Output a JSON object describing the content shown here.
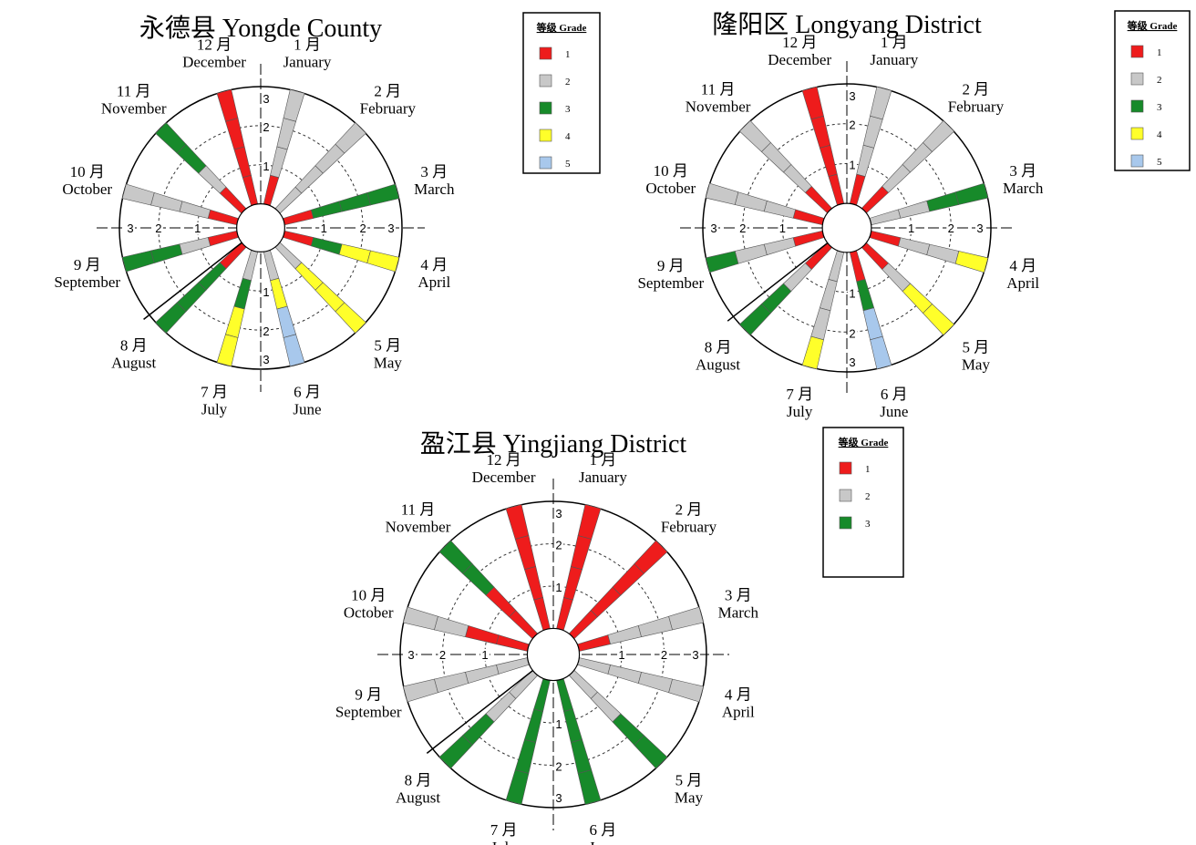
{
  "chart_data": [
    {
      "type": "radial-bar",
      "title": "永德县 Yongde County",
      "months": [
        {
          "cn": "1 月",
          "en": "January",
          "grades": [
            1,
            2,
            2,
            2
          ]
        },
        {
          "cn": "2 月",
          "en": "February",
          "grades": [
            2,
            2,
            2,
            2
          ]
        },
        {
          "cn": "3 月",
          "en": "March",
          "grades": [
            1,
            3,
            3,
            3
          ]
        },
        {
          "cn": "4 月",
          "en": "April",
          "grades": [
            1,
            3,
            4,
            4
          ]
        },
        {
          "cn": "5 月",
          "en": "May",
          "grades": [
            2,
            4,
            4,
            4
          ]
        },
        {
          "cn": "6 月",
          "en": "June",
          "grades": [
            2,
            4,
            5,
            5
          ]
        },
        {
          "cn": "7 月",
          "en": "July",
          "grades": [
            2,
            3,
            4,
            4
          ]
        },
        {
          "cn": "8 月",
          "en": "August",
          "grades": [
            1,
            3,
            3,
            3
          ]
        },
        {
          "cn": "9 月",
          "en": "September",
          "grades": [
            1,
            2,
            3,
            3
          ]
        },
        {
          "cn": "10 月",
          "en": "October",
          "grades": [
            1,
            2,
            2,
            2
          ]
        },
        {
          "cn": "11 月",
          "en": "November",
          "grades": [
            1,
            2,
            3,
            3
          ]
        },
        {
          "cn": "12 月",
          "en": "December",
          "grades": [
            1,
            1,
            1,
            1
          ]
        }
      ],
      "ticks": [
        "1",
        "2",
        "3"
      ],
      "legend": {
        "title": "等级 Grade",
        "entries": [
          "1",
          "2",
          "3",
          "4",
          "5"
        ]
      }
    },
    {
      "type": "radial-bar",
      "title": "隆阳区 Longyang District",
      "months": [
        {
          "cn": "1 月",
          "en": "January",
          "grades": [
            1,
            2,
            2,
            2
          ]
        },
        {
          "cn": "2 月",
          "en": "February",
          "grades": [
            1,
            2,
            2,
            2
          ]
        },
        {
          "cn": "3 月",
          "en": "March",
          "grades": [
            2,
            2,
            3,
            3
          ]
        },
        {
          "cn": "4 月",
          "en": "April",
          "grades": [
            1,
            2,
            2,
            4
          ]
        },
        {
          "cn": "5 月",
          "en": "May",
          "grades": [
            1,
            2,
            4,
            4
          ]
        },
        {
          "cn": "6 月",
          "en": "June",
          "grades": [
            1,
            3,
            5,
            5
          ]
        },
        {
          "cn": "7 月",
          "en": "July",
          "grades": [
            2,
            2,
            2,
            4
          ]
        },
        {
          "cn": "8 月",
          "en": "August",
          "grades": [
            1,
            2,
            3,
            3
          ]
        },
        {
          "cn": "9 月",
          "en": "September",
          "grades": [
            1,
            2,
            2,
            3
          ]
        },
        {
          "cn": "10 月",
          "en": "October",
          "grades": [
            1,
            2,
            2,
            2
          ]
        },
        {
          "cn": "11 月",
          "en": "November",
          "grades": [
            1,
            2,
            2,
            2
          ]
        },
        {
          "cn": "12 月",
          "en": "December",
          "grades": [
            1,
            1,
            1,
            1
          ]
        }
      ],
      "ticks": [
        "1",
        "2",
        "3"
      ],
      "legend": {
        "title": "等级 Grade",
        "entries": [
          "1",
          "2",
          "3",
          "4",
          "5"
        ]
      }
    },
    {
      "type": "radial-bar",
      "title": "盈江县 Yingjiang District",
      "months": [
        {
          "cn": "1 月",
          "en": "January",
          "grades": [
            1,
            1,
            1,
            1
          ]
        },
        {
          "cn": "2 月",
          "en": "February",
          "grades": [
            1,
            1,
            1,
            1
          ]
        },
        {
          "cn": "3 月",
          "en": "March",
          "grades": [
            1,
            2,
            2,
            2
          ]
        },
        {
          "cn": "4 月",
          "en": "April",
          "grades": [
            2,
            2,
            2,
            2
          ]
        },
        {
          "cn": "5 月",
          "en": "May",
          "grades": [
            2,
            2,
            3,
            3
          ]
        },
        {
          "cn": "6 月",
          "en": "June",
          "grades": [
            3,
            3,
            3,
            3
          ]
        },
        {
          "cn": "7 月",
          "en": "July",
          "grades": [
            3,
            3,
            3,
            3
          ]
        },
        {
          "cn": "8 月",
          "en": "August",
          "grades": [
            2,
            2,
            3,
            3
          ]
        },
        {
          "cn": "9 月",
          "en": "September",
          "grades": [
            2,
            2,
            2,
            2
          ]
        },
        {
          "cn": "10 月",
          "en": "October",
          "grades": [
            1,
            1,
            2,
            2
          ]
        },
        {
          "cn": "11 月",
          "en": "November",
          "grades": [
            1,
            1,
            3,
            3
          ]
        },
        {
          "cn": "12 月",
          "en": "December",
          "grades": [
            1,
            1,
            1,
            1
          ]
        }
      ],
      "ticks": [
        "1",
        "2",
        "3"
      ],
      "legend": {
        "title": "等级 Grade",
        "entries": [
          "1",
          "2",
          "3"
        ]
      }
    }
  ],
  "colors": {
    "grade_1": "#ee1c1c",
    "grade_2": "#c8c8c8",
    "grade_3": "#178a2a",
    "grade_4": "#ffff2a",
    "grade_5": "#a8c8ec",
    "outline": "#555555"
  }
}
